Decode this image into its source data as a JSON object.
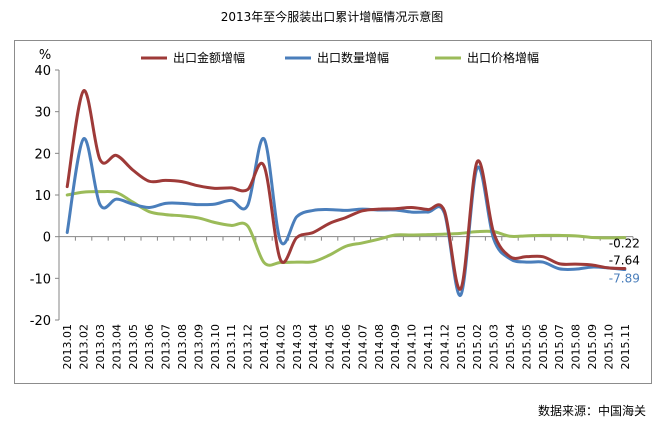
{
  "title": "2013年至今服装出口累计增幅情况示意图",
  "source": "数据来源：中国海关",
  "chart_data": {
    "type": "line",
    "unit_label": "%",
    "ylim": [
      -20,
      40
    ],
    "yticks": [
      -20,
      -10,
      0,
      10,
      20,
      30,
      40
    ],
    "grid": false,
    "legend_position": "top",
    "categories": [
      "2013.01",
      "2013.02",
      "2013.03",
      "2013.04",
      "2013.05",
      "2013.06",
      "2013.07",
      "2013.08",
      "2013.09",
      "2013.10",
      "2013.11",
      "2013.12",
      "2014.01",
      "2014.02",
      "2014.03",
      "2014.04",
      "2014.05",
      "2014.06",
      "2014.07",
      "2014.08",
      "2014.09",
      "2014.10",
      "2014.11",
      "2014.12",
      "2015.01",
      "2015.02",
      "2015.03",
      "2015.04",
      "2015.05",
      "2015.06",
      "2015.07",
      "2015.08",
      "2015.09",
      "2015.10",
      "2015.11"
    ],
    "series": [
      {
        "name": "出口金额增幅",
        "color": "#9e3a38",
        "values": [
          12,
          35,
          18.5,
          19.5,
          16,
          13.3,
          13.5,
          13.2,
          12.2,
          11.6,
          11.7,
          11.3,
          17,
          -5.5,
          -0.2,
          1,
          3.2,
          4.6,
          6.2,
          6.6,
          6.7,
          7,
          6.5,
          6.2,
          -12.5,
          18,
          1,
          -4.8,
          -4.8,
          -4.8,
          -6.5,
          -6.6,
          -6.8,
          -7.5,
          -7.64
        ],
        "end_label": "-7.64"
      },
      {
        "name": "出口数量增幅",
        "color": "#4a7ebb",
        "values": [
          1,
          23.5,
          7.7,
          9,
          7.8,
          7,
          8,
          8,
          7.7,
          7.8,
          8.7,
          7.5,
          23.5,
          -1,
          4.8,
          6.3,
          6.5,
          6.3,
          6.6,
          6.4,
          6.4,
          5.9,
          5.9,
          5.7,
          -14,
          16.5,
          -0.5,
          -5.3,
          -6.1,
          -6.1,
          -7.7,
          -7.8,
          -7.3,
          -7.5,
          -7.89
        ],
        "end_label": "-7.89"
      },
      {
        "name": "出口价格增幅",
        "color": "#9bbb59",
        "values": [
          10,
          10.7,
          10.8,
          10.6,
          8.3,
          6,
          5.3,
          5,
          4.5,
          3.4,
          2.7,
          2.6,
          -6.2,
          -6.2,
          -6.1,
          -6,
          -4.4,
          -2.3,
          -1.5,
          -0.6,
          0.4,
          0.4,
          0.5,
          0.6,
          0.8,
          1.2,
          1.2,
          0.1,
          0.2,
          0.3,
          0.3,
          0.2,
          -0.2,
          -0.3,
          -0.22
        ],
        "end_label": "-0.22"
      }
    ]
  }
}
